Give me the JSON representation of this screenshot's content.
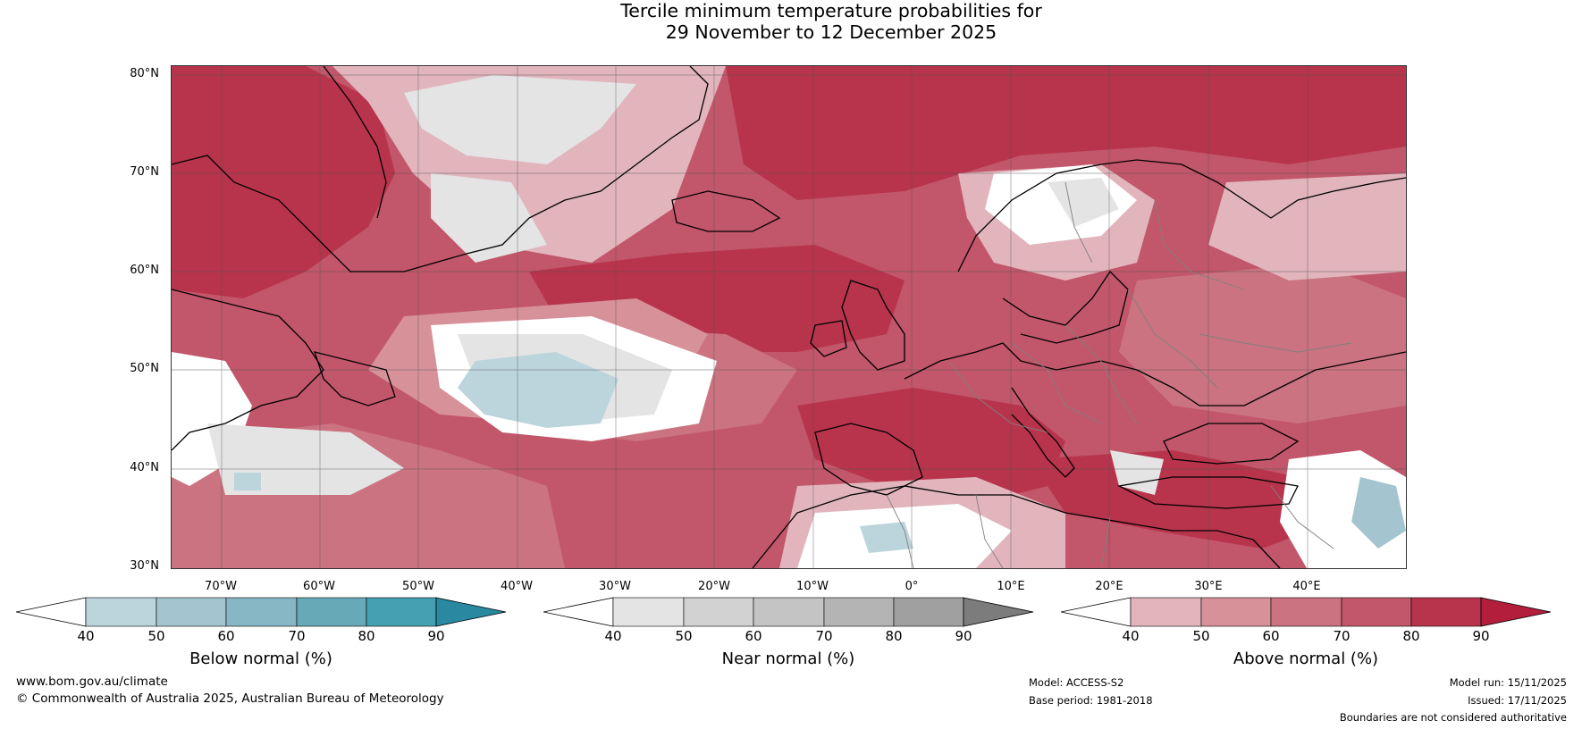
{
  "title": {
    "line1": "Tercile minimum temperature probabilities for",
    "line2": "29 November to 12 December 2025"
  },
  "map": {
    "lat_labels": [
      "80°N",
      "70°N",
      "60°N",
      "50°N",
      "40°N",
      "30°N"
    ],
    "lon_labels": [
      "70°W",
      "60°W",
      "50°W",
      "40°W",
      "30°W",
      "20°W",
      "10°W",
      "0°",
      "10°E",
      "20°E",
      "30°E",
      "40°E"
    ],
    "colors": {
      "land_outline": "#000000",
      "borders": "#808080",
      "gridlines": "#555555"
    }
  },
  "colorbars": [
    {
      "title": "Below normal (%)",
      "ticks": [
        "40",
        "50",
        "60",
        "70",
        "80",
        "90"
      ],
      "colors": [
        "#ffffff",
        "#bcd4dc",
        "#a4c5cf",
        "#87b6c4",
        "#68a9b8",
        "#45a0b1",
        "#2889a0"
      ]
    },
    {
      "title": "Near normal (%)",
      "ticks": [
        "40",
        "50",
        "60",
        "70",
        "80",
        "90"
      ],
      "colors": [
        "#ffffff",
        "#e4e4e4",
        "#d2d2d2",
        "#c4c4c4",
        "#b4b4b4",
        "#a0a0a0",
        "#7c7c7c"
      ]
    },
    {
      "title": "Above normal (%)",
      "ticks": [
        "40",
        "50",
        "60",
        "70",
        "80",
        "90"
      ],
      "colors": [
        "#ffffff",
        "#e2b5bd",
        "#d69199",
        "#cb7380",
        "#c2566a",
        "#b7344c",
        "#b21e3c"
      ]
    }
  ],
  "footer": {
    "website": "www.bom.gov.au/climate",
    "copyright": "© Commonwealth of Australia 2025, Australian Bureau of Meteorology",
    "model": "Model: ACCESS-S2",
    "base_period": "Base period: 1981-2018",
    "model_run": "Model run: 15/11/2025",
    "issued": "Issued: 17/11/2025",
    "disclaimer": "Boundaries are not considered authoritative"
  }
}
